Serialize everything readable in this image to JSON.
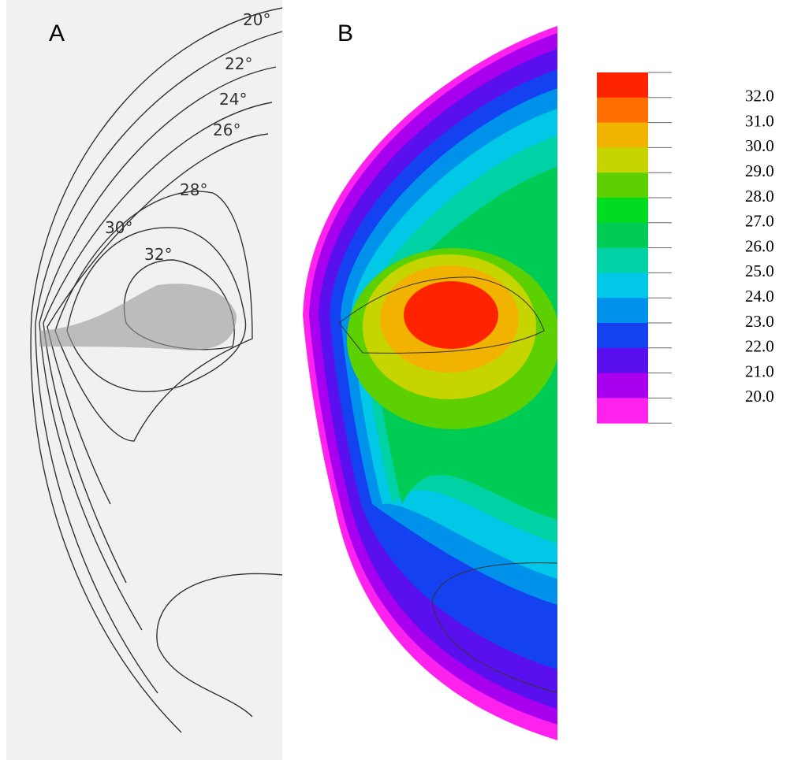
{
  "panel_a": {
    "label": "A",
    "contour_labels": [
      "20°",
      "22°",
      "24°",
      "26°",
      "28°",
      "30°",
      "32°"
    ]
  },
  "panel_b": {
    "label": "B",
    "colorbar": {
      "labels": [
        "32.0",
        "31.0",
        "30.0",
        "29.0",
        "28.0",
        "27.0",
        "26.0",
        "25.0",
        "24.0",
        "23.0",
        "22.0",
        "21.0",
        "20.0"
      ],
      "colors": [
        "#ff2400",
        "#ff6e00",
        "#f2b300",
        "#c6d400",
        "#5cd000",
        "#00dd20",
        "#00cc55",
        "#00d2a6",
        "#00c8e6",
        "#0092ea",
        "#1442f0",
        "#5a10ee",
        "#a800ee",
        "#ff22ee"
      ]
    }
  }
}
